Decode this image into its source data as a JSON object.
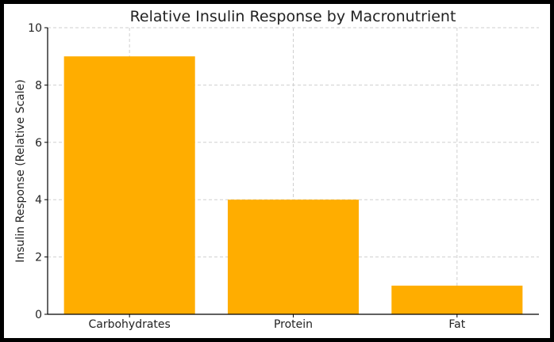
{
  "chart_data": {
    "type": "bar",
    "title": "Relative Insulin Response by Macronutrient",
    "xlabel": "",
    "ylabel": "Insulin Response (Relative Scale)",
    "categories": [
      "Carbohydrates",
      "Protein",
      "Fat"
    ],
    "values": [
      9,
      4,
      1
    ],
    "ylim": [
      0,
      10
    ],
    "yticks": [
      "0",
      "2",
      "4",
      "6",
      "8",
      "10"
    ],
    "grid": true,
    "legend": "none",
    "bar_color": "#FFAD00"
  }
}
